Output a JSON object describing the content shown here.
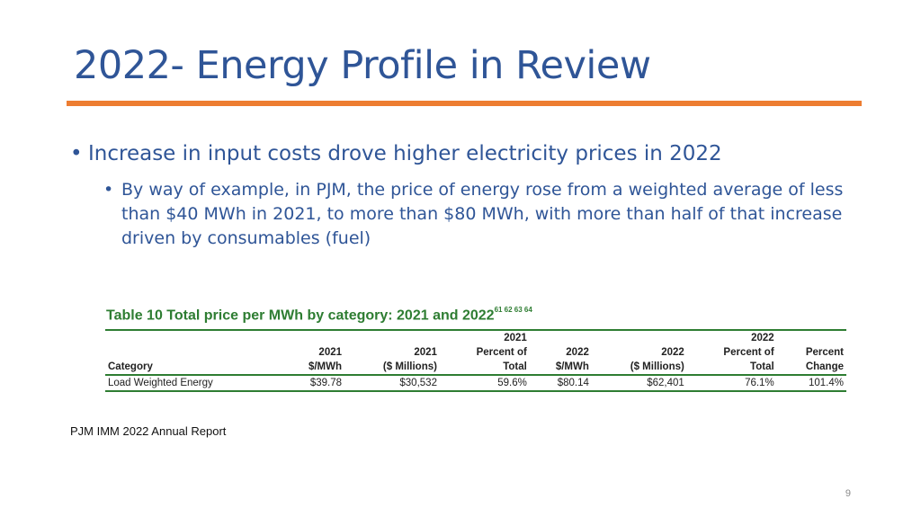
{
  "slide": {
    "title": "2022- Energy Profile in Review",
    "bullet1": "Increase in input costs drove higher electricity prices in 2022",
    "bullet1_sub": "By way of example, in PJM, the price of energy rose from a weighted average of less than $40 MWh in 2021, to more than $80 MWh, with more than half of that increase driven by consumables (fuel)",
    "bullet_char": "•",
    "source": "PJM IMM 2022 Annual Report",
    "page_number": "9",
    "colors": {
      "title": "#2f5597",
      "rule": "#ed7d31",
      "table_accent": "#2e7d32"
    }
  },
  "table": {
    "title": "Table 10 Total price per MWh by category: 2021 and 2022",
    "title_refs": "61 62 63 64",
    "headers": [
      [
        "",
        "",
        "",
        "2021",
        "",
        "",
        "2022",
        ""
      ],
      [
        "",
        "2021",
        "2021",
        "Percent of",
        "2022",
        "2022",
        "Percent of",
        "Percent"
      ],
      [
        "Category",
        "$/MWh",
        "($ Millions)",
        "Total",
        "$/MWh",
        "($ Millions)",
        "Total",
        "Change"
      ]
    ],
    "rows": [
      [
        "Load Weighted Energy",
        "$39.78",
        "$30,532",
        "59.6%",
        "$80.14",
        "$62,401",
        "76.1%",
        "101.4%"
      ]
    ]
  }
}
